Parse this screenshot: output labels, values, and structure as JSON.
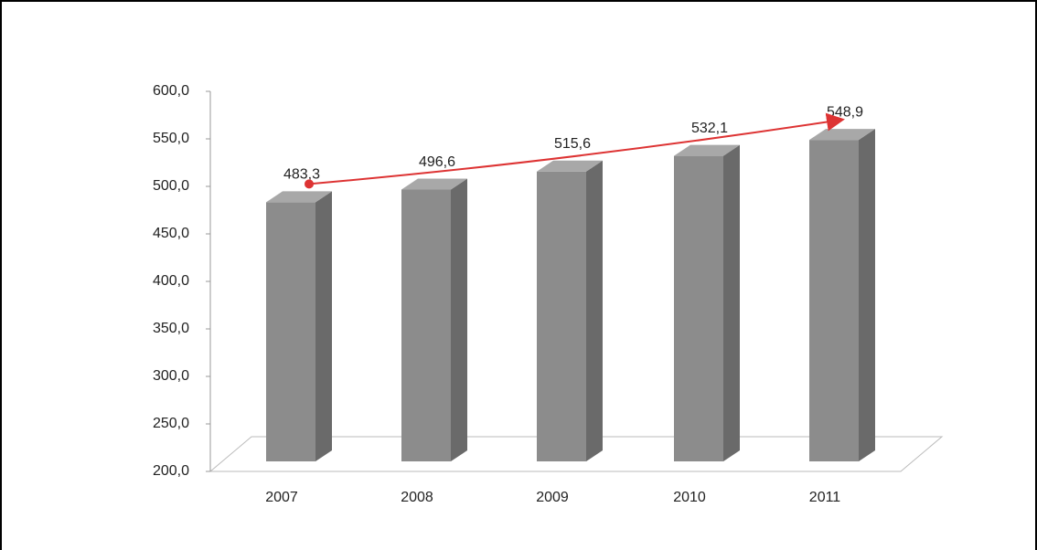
{
  "chart_data": {
    "type": "bar3d",
    "categories": [
      "2007",
      "2008",
      "2009",
      "2010",
      "2011"
    ],
    "values": [
      483.3,
      496.6,
      515.6,
      532.1,
      548.9
    ],
    "value_labels": [
      "483,3",
      "496,6",
      "515,6",
      "532,1",
      "548,9"
    ],
    "color": "#8c8c8c",
    "ylim": [
      200,
      600
    ],
    "yticks": [
      {
        "value": 200,
        "label": "200,0"
      },
      {
        "value": 250,
        "label": "250,0"
      },
      {
        "value": 300,
        "label": "300,0"
      },
      {
        "value": 350,
        "label": "350,0"
      },
      {
        "value": 400,
        "label": "400,0"
      },
      {
        "value": 450,
        "label": "450,0"
      },
      {
        "value": 500,
        "label": "500,0"
      },
      {
        "value": 550,
        "label": "550,0"
      },
      {
        "value": 600,
        "label": "600,0"
      }
    ]
  }
}
